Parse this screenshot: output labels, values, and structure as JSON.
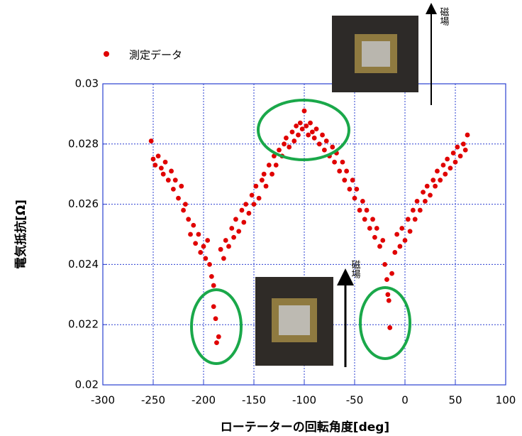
{
  "chart_data": {
    "type": "scatter",
    "xlabel": "ローテーターの回転角度[deg]",
    "ylabel": "電気抵抗[Ω]",
    "annotations": [
      "磁場",
      "磁場"
    ],
    "xlim": [
      -300,
      100
    ],
    "xticks": [
      -300,
      -250,
      -200,
      -150,
      -100,
      -50,
      0,
      50,
      100
    ],
    "ylim": [
      0.02,
      0.03
    ],
    "yticks": [
      0.02,
      0.022,
      0.024,
      0.026,
      0.028,
      0.03
    ],
    "grid": true,
    "series": [
      {
        "name": "測定データ",
        "color": "#e00000",
        "x": [
          -252,
          -250,
          -248,
          -245,
          -242,
          -240,
          -238,
          -235,
          -232,
          -230,
          -228,
          -225,
          -222,
          -220,
          -218,
          -215,
          -213,
          -210,
          -208,
          -205,
          -203,
          -200,
          -198,
          -196,
          -194,
          -192,
          -190,
          -190,
          -188,
          -187,
          -185,
          -183,
          -180,
          -178,
          -175,
          -172,
          -170,
          -168,
          -165,
          -162,
          -160,
          -158,
          -155,
          -152,
          -150,
          -148,
          -145,
          -142,
          -140,
          -138,
          -135,
          -132,
          -130,
          -128,
          -125,
          -122,
          -120,
          -118,
          -115,
          -112,
          -110,
          -108,
          -106,
          -104,
          -102,
          -100,
          -98,
          -96,
          -94,
          -92,
          -90,
          -88,
          -85,
          -82,
          -80,
          -78,
          -75,
          -72,
          -70,
          -68,
          -65,
          -62,
          -60,
          -58,
          -55,
          -52,
          -50,
          -48,
          -45,
          -42,
          -40,
          -38,
          -35,
          -32,
          -30,
          -28,
          -25,
          -22,
          -20,
          -18,
          -17,
          -16,
          -15,
          -13,
          -10,
          -8,
          -5,
          -3,
          0,
          3,
          5,
          8,
          10,
          12,
          15,
          18,
          20,
          22,
          25,
          28,
          30,
          32,
          35,
          38,
          40,
          42,
          45,
          48,
          50,
          52,
          55,
          58,
          60,
          62
        ],
        "values": [
          0.0281,
          0.0275,
          0.0273,
          0.0276,
          0.0272,
          0.027,
          0.0274,
          0.0268,
          0.0271,
          0.0265,
          0.0268,
          0.0262,
          0.0266,
          0.0258,
          0.026,
          0.0255,
          0.025,
          0.0253,
          0.0247,
          0.025,
          0.0244,
          0.0246,
          0.0242,
          0.0248,
          0.024,
          0.0236,
          0.0233,
          0.0226,
          0.0222,
          0.0214,
          0.0216,
          0.0245,
          0.0242,
          0.0248,
          0.0246,
          0.0252,
          0.0249,
          0.0255,
          0.0251,
          0.0258,
          0.0254,
          0.026,
          0.0257,
          0.0263,
          0.026,
          0.0266,
          0.0262,
          0.0268,
          0.027,
          0.0266,
          0.0273,
          0.027,
          0.0276,
          0.0273,
          0.0278,
          0.0276,
          0.028,
          0.0282,
          0.0279,
          0.0284,
          0.0281,
          0.0286,
          0.0283,
          0.0287,
          0.0285,
          0.0291,
          0.0286,
          0.0283,
          0.0287,
          0.0284,
          0.0282,
          0.0285,
          0.028,
          0.0283,
          0.0278,
          0.0281,
          0.0276,
          0.0279,
          0.0274,
          0.0277,
          0.0271,
          0.0274,
          0.0268,
          0.0271,
          0.0265,
          0.0268,
          0.0262,
          0.0265,
          0.0258,
          0.0261,
          0.0255,
          0.0258,
          0.0252,
          0.0255,
          0.0249,
          0.0252,
          0.0246,
          0.0248,
          0.024,
          0.0235,
          0.023,
          0.0228,
          0.0219,
          0.0237,
          0.0244,
          0.025,
          0.0246,
          0.0252,
          0.0248,
          0.0255,
          0.0251,
          0.0258,
          0.0255,
          0.0261,
          0.0258,
          0.0264,
          0.0261,
          0.0266,
          0.0263,
          0.0268,
          0.0266,
          0.0271,
          0.0268,
          0.0273,
          0.027,
          0.0275,
          0.0272,
          0.0277,
          0.0274,
          0.0279,
          0.0276,
          0.028,
          0.0278,
          0.0283
        ]
      }
    ]
  }
}
